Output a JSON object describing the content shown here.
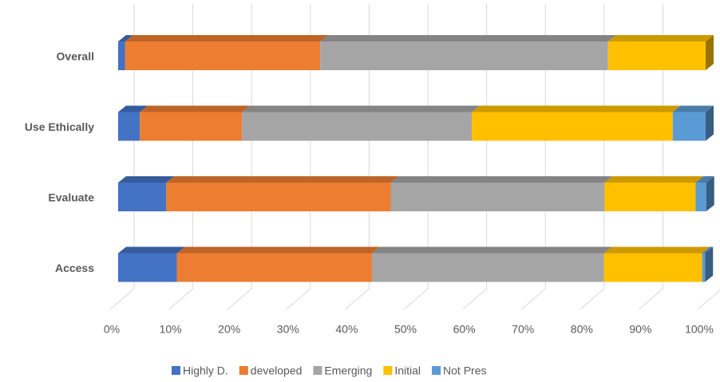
{
  "chart_data": {
    "type": "bar",
    "orientation": "horizontal",
    "stacked": true,
    "categories": [
      "Access",
      "Evaluate",
      "Use Ethically",
      "Overall"
    ],
    "series": [
      {
        "name": "Highly D.",
        "color": "#4472c4",
        "values": [
          10,
          8.2,
          3.7,
          1.2
        ]
      },
      {
        "name": "developed",
        "color": "#ed7d31",
        "values": [
          33.2,
          38.2,
          17.4,
          33.2
        ]
      },
      {
        "name": "Emerging",
        "color": "#a5a5a5",
        "values": [
          39.5,
          36.4,
          39.1,
          49
        ]
      },
      {
        "name": "Initial",
        "color": "#ffc000",
        "values": [
          16.7,
          15.5,
          34.2,
          16.6
        ]
      },
      {
        "name": "Not Pres",
        "color": "#5b9bd5",
        "values": [
          0.5,
          1.8,
          5.6,
          0
        ]
      }
    ],
    "xlim": [
      0,
      100
    ],
    "xticks": [
      {
        "value": 0,
        "label": "0%"
      },
      {
        "value": 10,
        "label": "10%"
      },
      {
        "value": 20,
        "label": "20%"
      },
      {
        "value": 30,
        "label": "30%"
      },
      {
        "value": 40,
        "label": "40%"
      },
      {
        "value": 50,
        "label": "50%"
      },
      {
        "value": 60,
        "label": "60%"
      },
      {
        "value": 70,
        "label": "70%"
      },
      {
        "value": 80,
        "label": "80%"
      },
      {
        "value": 90,
        "label": "90%"
      },
      {
        "value": 100,
        "label": "100%"
      }
    ],
    "grid": true,
    "legend": "bottom"
  }
}
